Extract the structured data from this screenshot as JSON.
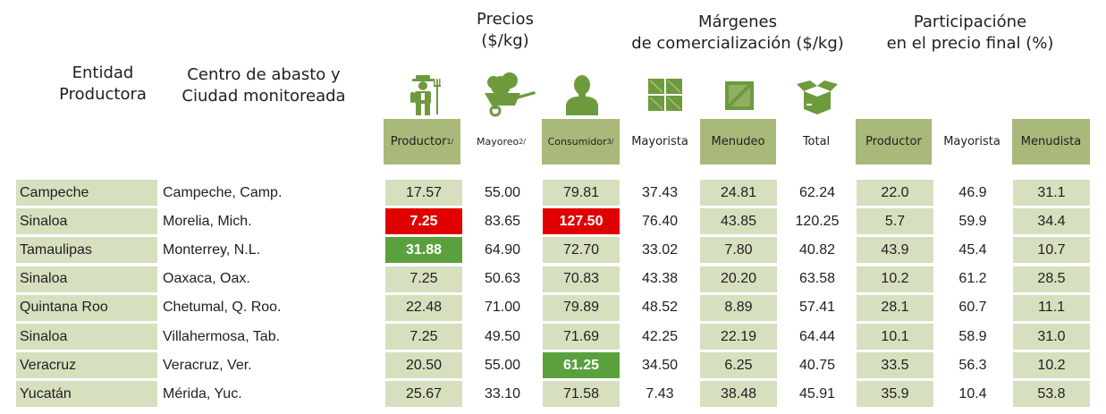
{
  "header": {
    "entidad": [
      "Entidad",
      "Productora"
    ],
    "centro": [
      "Centro de abasto y",
      "Ciudad monitoreada"
    ],
    "precios": [
      "Precios",
      "($/kg)"
    ],
    "margenes": [
      "Márgenes",
      "de comercialización ($/kg)"
    ],
    "participacion": [
      "Participacióne",
      "en el precio final (%)"
    ]
  },
  "icons": [
    "farmer-icon",
    "wheelbarrow-icon",
    "consumer-icon",
    "wholesale-crates-icon",
    "retail-crate-icon",
    "open-box-icon"
  ],
  "columns": {
    "productor": {
      "label": "Productor",
      "sup": "1/"
    },
    "mayoreo": {
      "label": "Mayoreo",
      "sup": "2/"
    },
    "consumidor": {
      "label": "Consumidor",
      "sup": "3/"
    },
    "mayorista": "Mayorista",
    "menudeo": "Menudeo",
    "total": "Total",
    "p_productor": "Productor",
    "p_mayorista": "Mayorista",
    "p_menudista": "Menudista"
  },
  "colors": {
    "header_green": "#a8b97a",
    "light_green": "#d6e0bf",
    "highlight_red": "#e00000",
    "highlight_green": "#5aa13e",
    "icon_green": "#6e9a3e"
  },
  "rows": [
    [
      "Campeche",
      "Campeche, Camp.",
      "17.57",
      "55.00",
      "79.81",
      "37.43",
      "24.81",
      "62.24",
      "22.0",
      "46.9",
      "31.1"
    ],
    [
      "Sinaloa",
      "Morelia, Mich.",
      "7.25",
      "83.65",
      "127.50",
      "76.40",
      "43.85",
      "120.25",
      "5.7",
      "59.9",
      "34.4"
    ],
    [
      "Tamaulipas",
      "Monterrey, N.L.",
      "31.88",
      "64.90",
      "72.70",
      "33.02",
      "7.80",
      "40.82",
      "43.9",
      "45.4",
      "10.7"
    ],
    [
      "Sinaloa",
      "Oaxaca, Oax.",
      "7.25",
      "50.63",
      "70.83",
      "43.38",
      "20.20",
      "63.58",
      "10.2",
      "61.2",
      "28.5"
    ],
    [
      "Quintana Roo",
      "Chetumal, Q. Roo.",
      "22.48",
      "71.00",
      "79.89",
      "48.52",
      "8.89",
      "57.41",
      "28.1",
      "60.7",
      "11.1"
    ],
    [
      "Sinaloa",
      "Villahermosa, Tab.",
      "7.25",
      "49.50",
      "71.69",
      "42.25",
      "22.19",
      "64.44",
      "10.1",
      "58.9",
      "31.0"
    ],
    [
      "Veracruz",
      "Veracruz, Ver.",
      "20.50",
      "55.00",
      "61.25",
      "34.50",
      "6.25",
      "40.75",
      "33.5",
      "56.3",
      "10.2"
    ],
    [
      "Yucatán",
      "Mérida, Yuc.",
      "25.67",
      "33.10",
      "71.58",
      "7.43",
      "38.48",
      "45.91",
      "35.9",
      "10.4",
      "53.8"
    ]
  ],
  "highlights": [
    {
      "row": 1,
      "col": 2,
      "color": "red"
    },
    {
      "row": 1,
      "col": 4,
      "color": "red"
    },
    {
      "row": 2,
      "col": 2,
      "color": "grn"
    },
    {
      "row": 6,
      "col": 4,
      "color": "grn"
    }
  ]
}
